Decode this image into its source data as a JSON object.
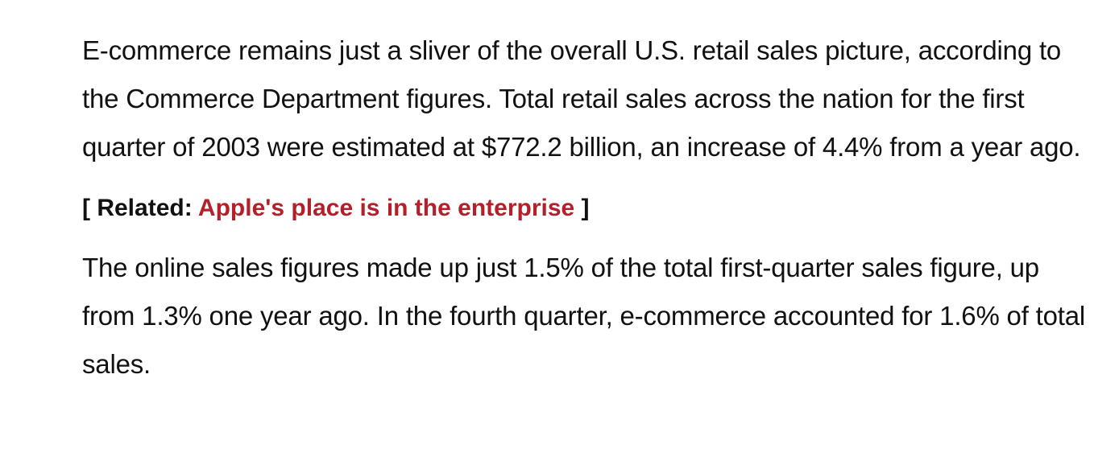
{
  "article": {
    "paragraphs": [
      "E-commerce remains just a sliver of the overall U.S. retail sales picture, according to the Commerce Department figures. Total retail sales across the nation for the first quarter of 2003 were estimated at $772.2 billion, an increase of 4.4% from a year ago.",
      "The online sales figures made up just 1.5% of the total first-quarter sales figure, up from 1.3% one year ago. In the fourth quarter, e-commerce accounted for 1.6% of total sales."
    ],
    "related": {
      "open": "[ ",
      "prefix": "Related: ",
      "link_text": "Apple's place is in the enterprise",
      "close": " ]"
    }
  },
  "colors": {
    "text": "#111111",
    "link": "#b3202a",
    "background": "#ffffff"
  }
}
